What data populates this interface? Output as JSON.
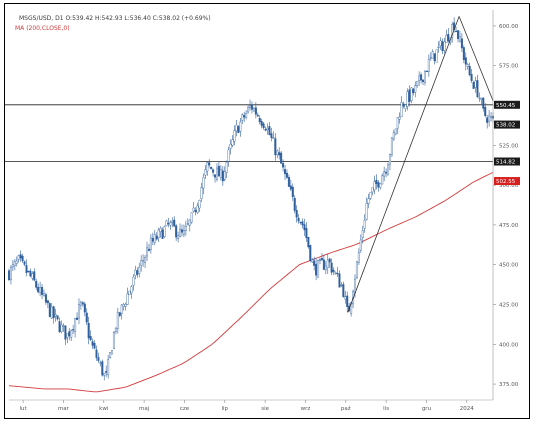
{
  "header": {
    "symbol_line": "MSGS/USD, D1  O:539.42  H:542.93  L:536.40  C:538.02  (+0.69%)",
    "ma_line": "MA (200,CLOSE,0)"
  },
  "colors": {
    "candle": "#2f5f9c",
    "ma": "#d23a3a",
    "hline": "#222222",
    "trendline": "#333333",
    "price_tag_bg": "#1b1b1b",
    "ma_tag_bg": "#d61f1f",
    "grid": "#eeeeee",
    "axis_text": "#555555"
  },
  "chart_data": {
    "type": "candlestick",
    "title": "",
    "xlabel": "",
    "ylabel": "",
    "ylim": [
      365,
      610
    ],
    "yticks": [
      "600.00",
      "575.00",
      "550.00",
      "525.00",
      "500.00",
      "475.00",
      "450.00",
      "425.00",
      "400.00",
      "375.00"
    ],
    "ytick_values": [
      600,
      575,
      550,
      525,
      500,
      475,
      450,
      425,
      400,
      375
    ],
    "x_labels": [
      "lut",
      "mar",
      "kwi",
      "maj",
      "cze",
      "lip",
      "sie",
      "wrz",
      "paź",
      "lis",
      "gru",
      "2024"
    ],
    "close_path": [
      {
        "t": 0,
        "v": 445
      },
      {
        "t": 0.02,
        "v": 452
      },
      {
        "t": 0.05,
        "v": 440
      },
      {
        "t": 0.09,
        "v": 418
      },
      {
        "t": 0.12,
        "v": 405
      },
      {
        "t": 0.15,
        "v": 425
      },
      {
        "t": 0.17,
        "v": 400
      },
      {
        "t": 0.2,
        "v": 378
      },
      {
        "t": 0.22,
        "v": 412
      },
      {
        "t": 0.25,
        "v": 435
      },
      {
        "t": 0.29,
        "v": 462
      },
      {
        "t": 0.33,
        "v": 475
      },
      {
        "t": 0.36,
        "v": 468
      },
      {
        "t": 0.38,
        "v": 480
      },
      {
        "t": 0.41,
        "v": 512
      },
      {
        "t": 0.44,
        "v": 505
      },
      {
        "t": 0.47,
        "v": 535
      },
      {
        "t": 0.5,
        "v": 550
      },
      {
        "t": 0.53,
        "v": 538
      },
      {
        "t": 0.56,
        "v": 515
      },
      {
        "t": 0.59,
        "v": 487
      },
      {
        "t": 0.61,
        "v": 473
      },
      {
        "t": 0.63,
        "v": 447
      },
      {
        "t": 0.66,
        "v": 452
      },
      {
        "t": 0.69,
        "v": 435
      },
      {
        "t": 0.7,
        "v": 418
      },
      {
        "t": 0.72,
        "v": 452
      },
      {
        "t": 0.74,
        "v": 490
      },
      {
        "t": 0.78,
        "v": 512
      },
      {
        "t": 0.81,
        "v": 550
      },
      {
        "t": 0.84,
        "v": 560
      },
      {
        "t": 0.87,
        "v": 578
      },
      {
        "t": 0.9,
        "v": 590
      },
      {
        "t": 0.92,
        "v": 602
      },
      {
        "t": 0.95,
        "v": 570
      },
      {
        "t": 0.97,
        "v": 558
      },
      {
        "t": 0.98,
        "v": 545
      },
      {
        "t": 1.0,
        "v": 540
      }
    ],
    "series": [
      {
        "name": "MA (200,CLOSE,0)",
        "points": [
          {
            "t": 0,
            "v": 374
          },
          {
            "t": 0.07,
            "v": 372
          },
          {
            "t": 0.12,
            "v": 372
          },
          {
            "t": 0.18,
            "v": 370
          },
          {
            "t": 0.24,
            "v": 373
          },
          {
            "t": 0.3,
            "v": 380
          },
          {
            "t": 0.36,
            "v": 388
          },
          {
            "t": 0.42,
            "v": 400
          },
          {
            "t": 0.48,
            "v": 417
          },
          {
            "t": 0.54,
            "v": 435
          },
          {
            "t": 0.6,
            "v": 450
          },
          {
            "t": 0.66,
            "v": 457
          },
          {
            "t": 0.72,
            "v": 463
          },
          {
            "t": 0.78,
            "v": 472
          },
          {
            "t": 0.84,
            "v": 480
          },
          {
            "t": 0.9,
            "v": 490
          },
          {
            "t": 0.96,
            "v": 502
          },
          {
            "t": 1.0,
            "v": 508
          }
        ]
      }
    ],
    "horizontal_lines": [
      {
        "value": 550.45,
        "label": "550.45"
      },
      {
        "value": 514.82,
        "label": "514.82"
      }
    ],
    "trendlines": [
      [
        {
          "t": 0.7,
          "v": 420
        },
        {
          "t": 0.93,
          "v": 606
        }
      ],
      [
        {
          "t": 0.93,
          "v": 606
        },
        {
          "t": 1.0,
          "v": 553
        }
      ]
    ],
    "price_tags": [
      {
        "value": 550.45,
        "label": "550.45",
        "kind": "level"
      },
      {
        "value": 538.02,
        "label": "538.02",
        "kind": "last"
      },
      {
        "value": 514.82,
        "label": "514.82",
        "kind": "level"
      },
      {
        "value": 502.55,
        "label": "502.55",
        "kind": "ma"
      }
    ],
    "grid": false,
    "legend": "top-left"
  }
}
